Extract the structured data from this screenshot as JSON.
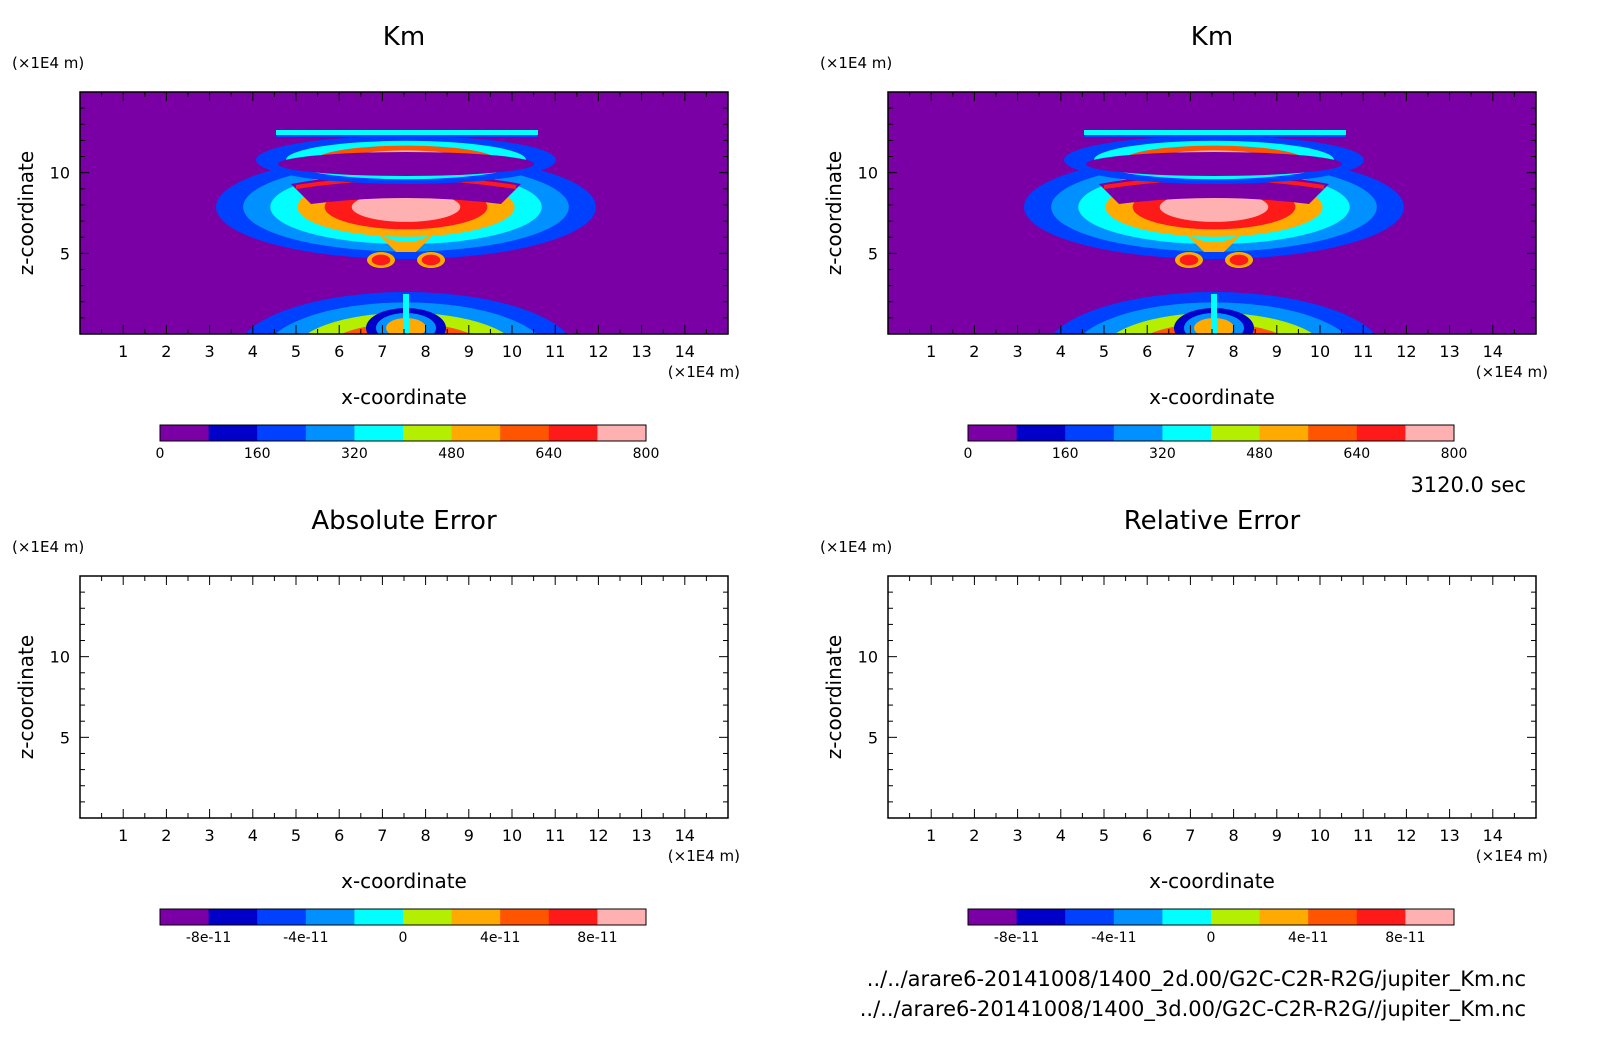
{
  "time_label": "3120.0 sec",
  "files": [
    "../../arare6-20141008/1400_2d.00/G2C-C2R-R2G/jupiter_Km.nc",
    "../../arare6-20141008/1400_3d.00/G2C-C2R-R2G//jupiter_Km.nc"
  ],
  "colormap": [
    "#7a00a6",
    "#0000c8",
    "#0040ff",
    "#0090ff",
    "#00ffff",
    "#b4ee00",
    "#ffaa00",
    "#ff5500",
    "#ff1a1a",
    "#ffb0b0"
  ],
  "chart_data": [
    {
      "type": "heatmap",
      "title": "Km",
      "xlabel": "x-coordinate",
      "ylabel": "z-coordinate",
      "x_unit": "(×1E4 m)",
      "y_unit": "(×1E4 m)",
      "xlim": [
        0,
        15
      ],
      "ylim": [
        0,
        15
      ],
      "x_ticks": [
        1,
        2,
        3,
        4,
        5,
        6,
        7,
        8,
        9,
        10,
        11,
        12,
        13,
        14
      ],
      "y_ticks": [
        5,
        10
      ],
      "colorbar": {
        "min": 0,
        "max": 800,
        "labels": [
          "0",
          "160",
          "320",
          "480",
          "640",
          "800"
        ]
      },
      "field": "filled"
    },
    {
      "type": "heatmap",
      "title": "Km",
      "xlabel": "x-coordinate",
      "ylabel": "z-coordinate",
      "x_unit": "(×1E4 m)",
      "y_unit": "(×1E4 m)",
      "xlim": [
        0,
        15
      ],
      "ylim": [
        0,
        15
      ],
      "x_ticks": [
        1,
        2,
        3,
        4,
        5,
        6,
        7,
        8,
        9,
        10,
        11,
        12,
        13,
        14
      ],
      "y_ticks": [
        5,
        10
      ],
      "colorbar": {
        "min": 0,
        "max": 800,
        "labels": [
          "0",
          "160",
          "320",
          "480",
          "640",
          "800"
        ]
      },
      "field": "filled"
    },
    {
      "type": "heatmap",
      "title": "Absolute Error",
      "xlabel": "x-coordinate",
      "ylabel": "z-coordinate",
      "x_unit": "(×1E4 m)",
      "y_unit": "(×1E4 m)",
      "xlim": [
        0,
        15
      ],
      "ylim": [
        0,
        15
      ],
      "x_ticks": [
        1,
        2,
        3,
        4,
        5,
        6,
        7,
        8,
        9,
        10,
        11,
        12,
        13,
        14
      ],
      "y_ticks": [
        5,
        10
      ],
      "colorbar": {
        "min": -1e-10,
        "max": 1e-10,
        "labels": [
          "-8e-11",
          "-4e-11",
          "0",
          "4e-11",
          "8e-11"
        ]
      },
      "field": "empty"
    },
    {
      "type": "heatmap",
      "title": "Relative Error",
      "xlabel": "x-coordinate",
      "ylabel": "z-coordinate",
      "x_unit": "(×1E4 m)",
      "y_unit": "(×1E4 m)",
      "xlim": [
        0,
        15
      ],
      "ylim": [
        0,
        15
      ],
      "x_ticks": [
        1,
        2,
        3,
        4,
        5,
        6,
        7,
        8,
        9,
        10,
        11,
        12,
        13,
        14
      ],
      "y_ticks": [
        5,
        10
      ],
      "colorbar": {
        "min": -1e-10,
        "max": 1e-10,
        "labels": [
          "-8e-11",
          "-4e-11",
          "0",
          "4e-11",
          "8e-11"
        ]
      },
      "field": "empty"
    }
  ]
}
